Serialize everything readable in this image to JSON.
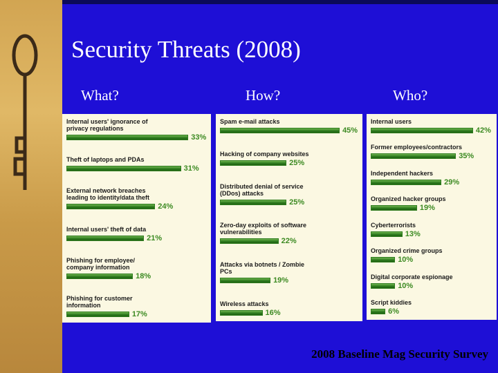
{
  "title": "Security Threats (2008)",
  "footer": "2008 Baseline Mag Security Survey",
  "chart_data": [
    {
      "type": "bar",
      "orientation": "horizontal",
      "title": "What?",
      "color": "#2f7d1f",
      "categories": [
        "Internal users' ignorance of privacy regulations",
        "Theft of laptops and PDAs",
        "External network breaches leading to identity/data theft",
        "Internal users' theft of data",
        "Phishing for employee/ company information",
        "Phishing for customer information"
      ],
      "values": [
        33,
        31,
        24,
        21,
        18,
        17
      ],
      "value_labels": [
        "33%",
        "31%",
        "24%",
        "21%",
        "18%",
        "17%"
      ],
      "xlim": [
        0,
        38
      ]
    },
    {
      "type": "bar",
      "orientation": "horizontal",
      "title": "How?",
      "color": "#2f7d1f",
      "categories": [
        "Spam e-mail attacks",
        "Hacking of company websites",
        "Distributed denial of service (DDos) attacks",
        "Zero-day exploits of software vulnerabilities",
        "Attacks via botnets / Zombie PCs",
        "Wireless attacks"
      ],
      "values": [
        45,
        25,
        25,
        22,
        19,
        16
      ],
      "value_labels": [
        "45%",
        "25%",
        "25%",
        "22%",
        "19%",
        "16%"
      ],
      "xlim": [
        0,
        52
      ]
    },
    {
      "type": "bar",
      "orientation": "horizontal",
      "title": "Who?",
      "color": "#2f7d1f",
      "categories": [
        "Internal users",
        "Former employees/contractors",
        "Independent hackers",
        "Organized hacker groups",
        "Cyberterrorists",
        "Organized crime groups",
        "Digital corporate espionage",
        "Script kiddies"
      ],
      "values": [
        42,
        35,
        29,
        19,
        13,
        10,
        10,
        6
      ],
      "value_labels": [
        "42%",
        "35%",
        "29%",
        "19%",
        "13%",
        "10%",
        "10%",
        "6%"
      ],
      "xlim": [
        0,
        50
      ]
    }
  ]
}
